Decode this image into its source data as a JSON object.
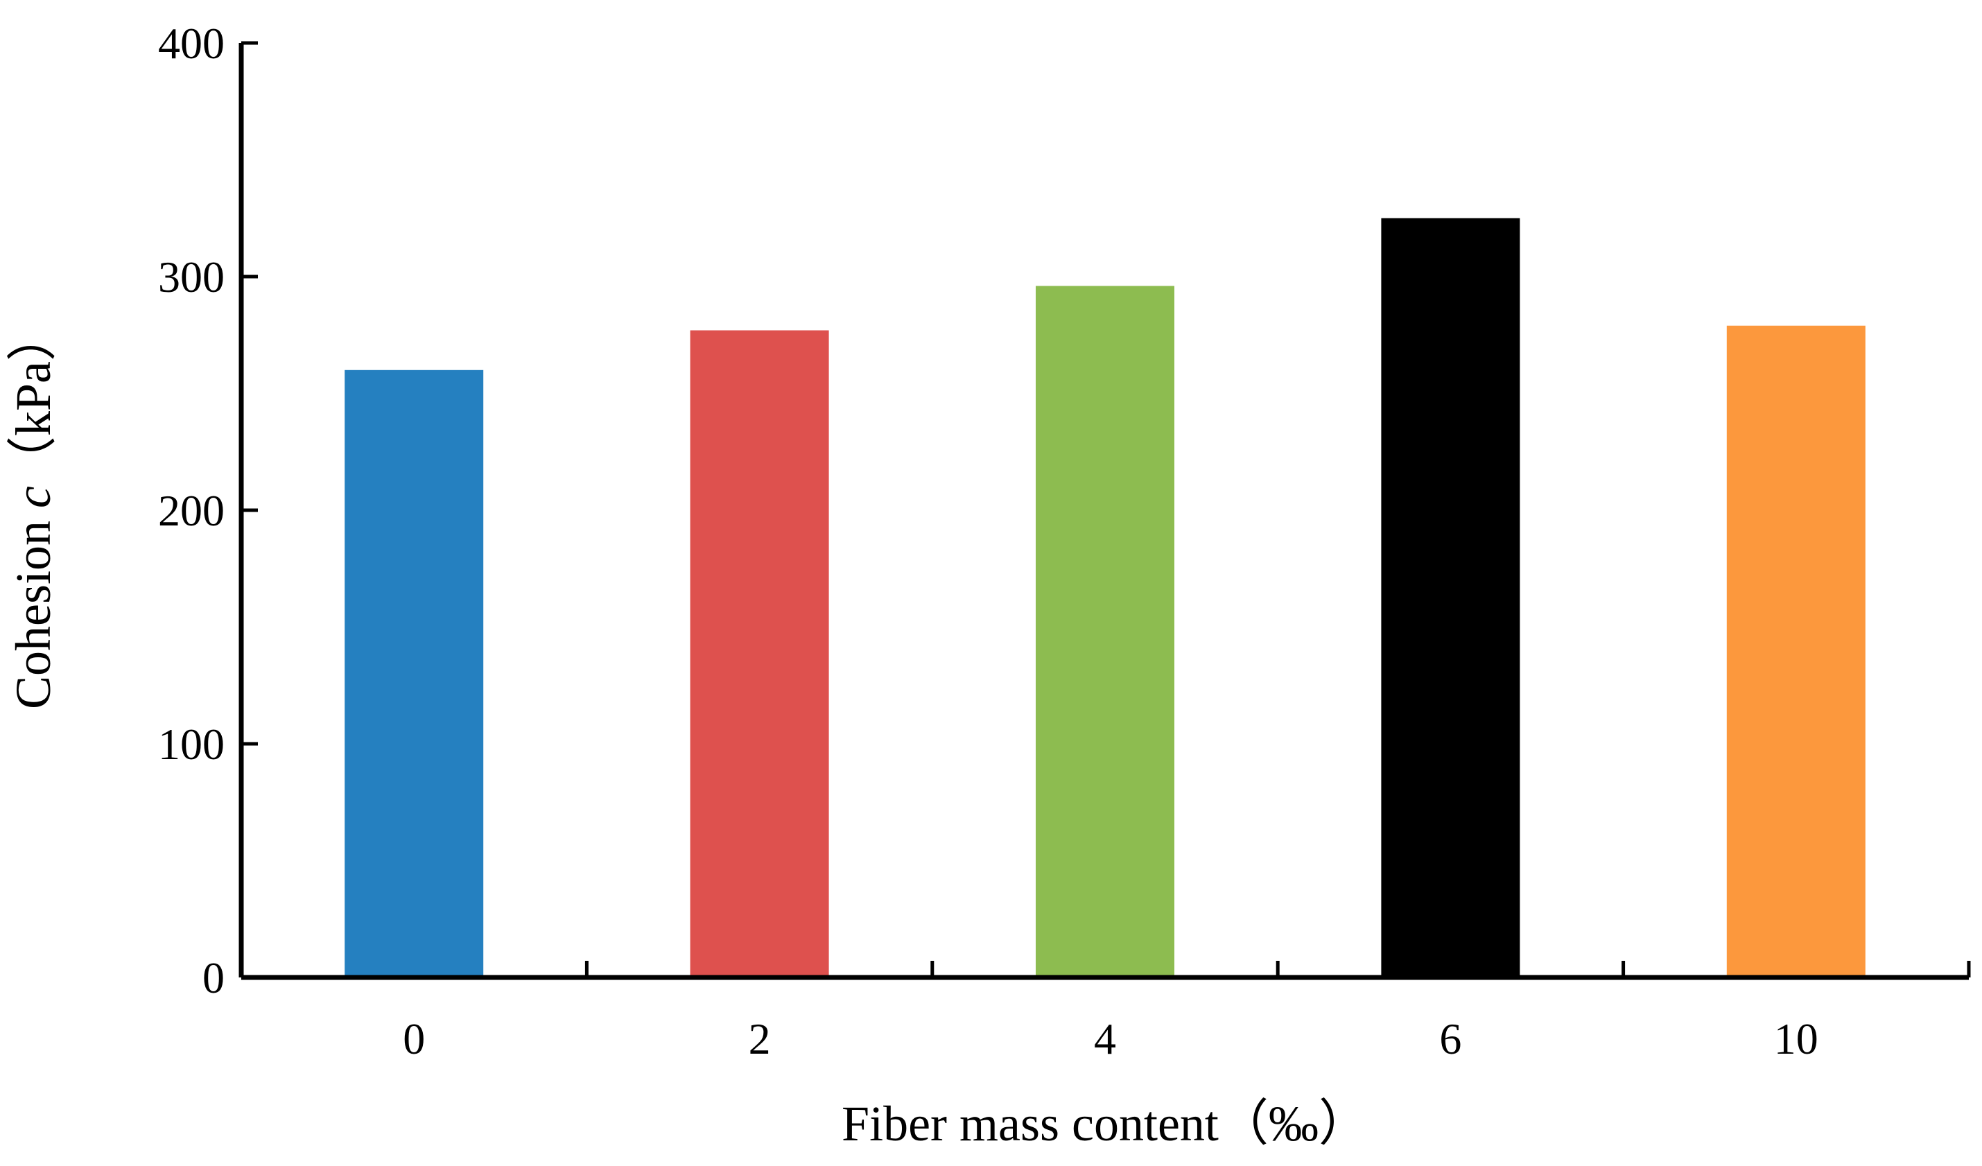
{
  "chart_data": {
    "type": "bar",
    "title": "",
    "categories": [
      "0",
      "2",
      "4",
      "6",
      "10"
    ],
    "values": [
      260,
      277,
      296,
      325,
      279
    ],
    "bar_colors": [
      "#2580C0",
      "#DE514E",
      "#8DBC50",
      "#000000",
      "#FC983D"
    ],
    "xlabel": {
      "text": "Fiber mass content",
      "unit": "（‰）"
    },
    "ylabel": {
      "text": "Cohesion ",
      "symbol": "c",
      "unit": "（kPa）"
    },
    "ylim": [
      0,
      400
    ],
    "yticks": [
      0,
      100,
      200,
      300,
      400
    ],
    "grid": false,
    "legend": "none"
  }
}
